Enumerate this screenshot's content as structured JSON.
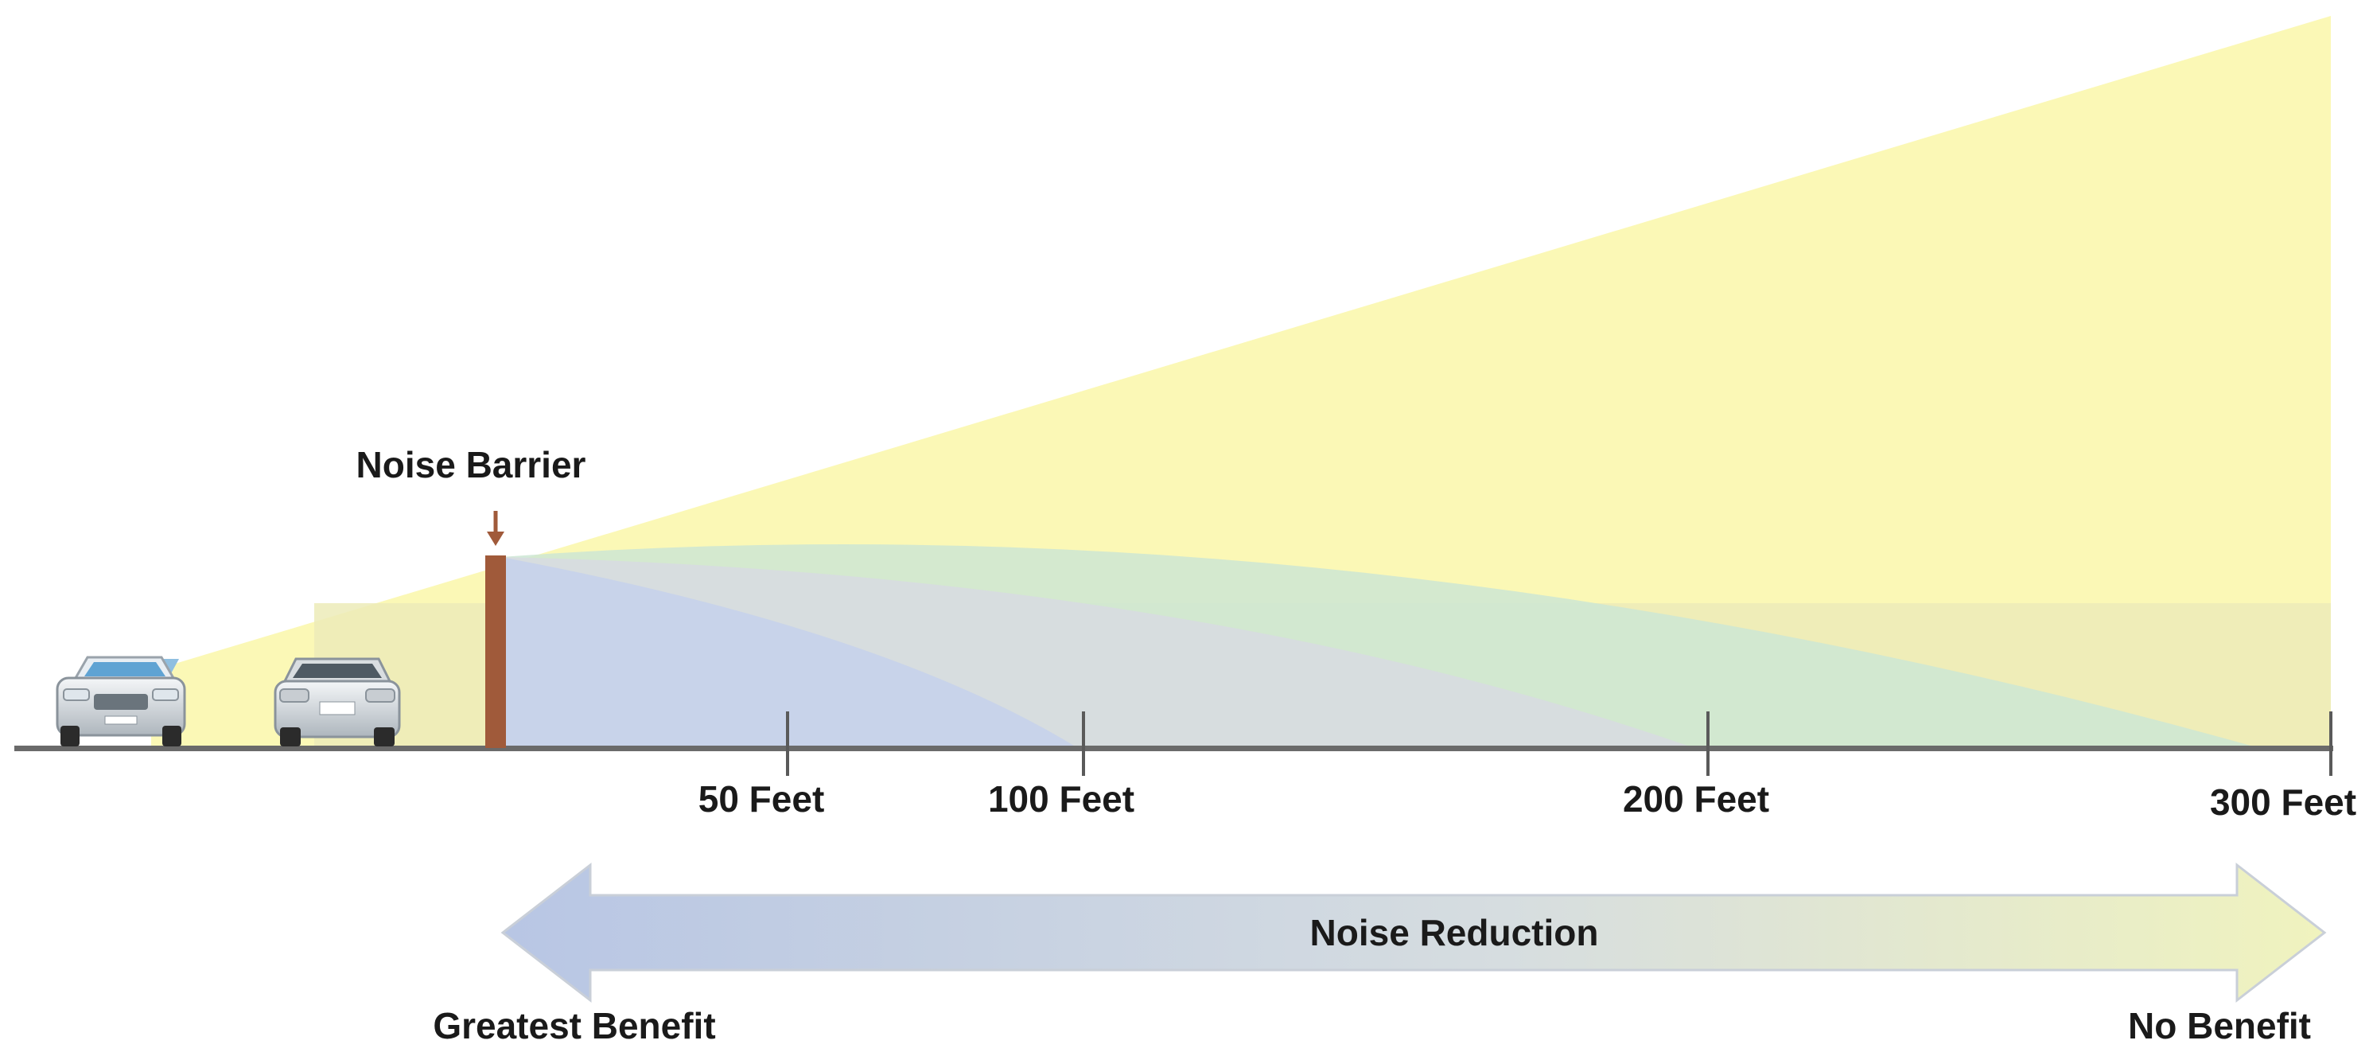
{
  "barrier_label": "Noise Barrier",
  "distance_labels": [
    "50 Feet",
    "100 Feet",
    "200 Feet",
    "300 Feet"
  ],
  "arrow_label": "Noise Reduction",
  "left_end_label": "Greatest Benefit",
  "right_end_label": "No Benefit",
  "icons": [
    "car-front-icon",
    "car-rear-icon",
    "barrier-post-icon",
    "down-arrow-icon"
  ],
  "colors": {
    "sound_zone": "#fbf8b6",
    "barrier": "#a05a3a",
    "ground": "#6a6a6a",
    "arrow_left": "#b8c6e4",
    "arrow_right": "#eef2bc"
  }
}
